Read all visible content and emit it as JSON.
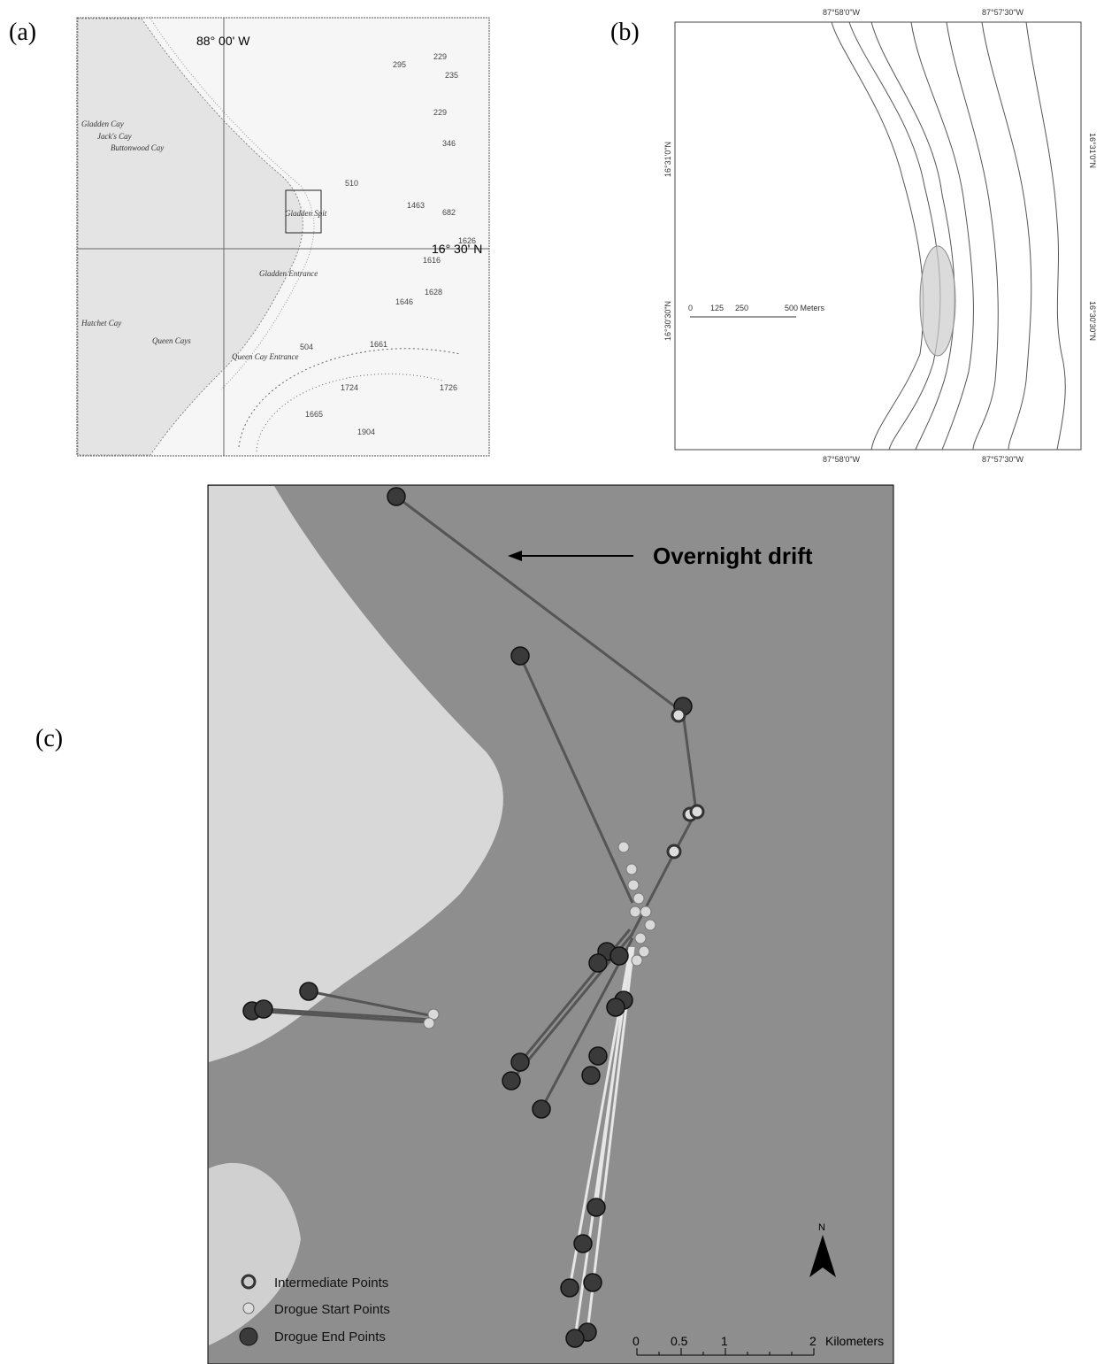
{
  "panels": {
    "a": {
      "label": "(a)",
      "meridian": "88° 00' W",
      "parallel": "16° 30' N",
      "places": [
        "Gladden Cay",
        "Jack's Cay",
        "Buttonwood Cay",
        "Gladden Spit",
        "Gladden Entrance",
        "Hatchet Cay",
        "Queen Cays",
        "Queen Cay Entrance"
      ],
      "soundings": [
        "295",
        "229",
        "235",
        "229",
        "346",
        "510",
        "1463",
        "682",
        "1626",
        "1616",
        "1628",
        "1646",
        "504",
        "1661",
        "1724",
        "1726",
        "1665",
        "1904"
      ]
    },
    "b": {
      "label": "(b)",
      "lon_west": "87°58'0\"W",
      "lon_east": "87°57'30\"W",
      "lat_north": "16°31'0\"N",
      "lat_south": "16°30'30\"N",
      "scale": [
        "0",
        "125",
        "250",
        "500 Meters"
      ]
    },
    "c": {
      "label": "(c)",
      "annotation": "Overnight drift",
      "legend": [
        "Intermediate Points",
        "Drogue Start Points",
        "Drogue End Points"
      ],
      "scale": [
        "0",
        "0.5",
        "1",
        "2"
      ],
      "scale_unit": "Kilometers",
      "north": "N"
    }
  }
}
